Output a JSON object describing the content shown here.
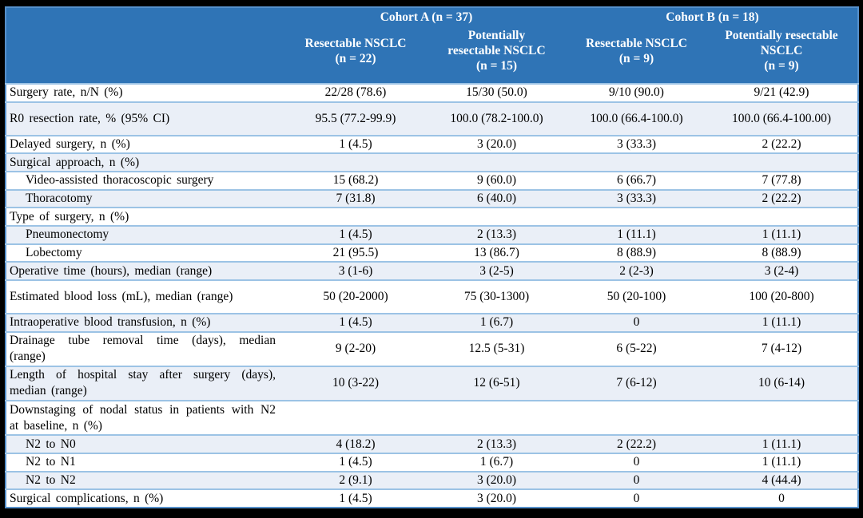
{
  "table": {
    "colors": {
      "header_bg": "#2F74B6",
      "band_bg": "#EAEFF7",
      "row_border": "#9CC3E5",
      "outer_border": "#5590CB",
      "frame_bg": "#000000",
      "header_text": "#FFFFFF"
    },
    "col_groups": [
      {
        "label": "Cohort A (n = 37)"
      },
      {
        "label": "Cohort B (n = 18)"
      }
    ],
    "columns": [
      {
        "label": "Resectable NSCLC\n(n = 22)"
      },
      {
        "label": "Potentially\nresectable NSCLC\n(n = 15)"
      },
      {
        "label": "Resectable NSCLC\n(n = 9)"
      },
      {
        "label": "Potentially resectable\nNSCLC\n(n = 9)"
      }
    ],
    "rows": [
      {
        "label": "Surgery rate, n/N (%)",
        "values": [
          "22/28 (78.6)",
          "15/30 (50.0)",
          "9/10 (90.0)",
          "9/21 (42.9)"
        ]
      },
      {
        "label": "R0 resection rate, % (95% CI)",
        "tall": true,
        "values": [
          "95.5 (77.2-99.9)",
          "100.0 (78.2-100.0)",
          "100.0 (66.4-100.0)",
          "100.0 (66.4-100.00)"
        ]
      },
      {
        "label": "Delayed surgery, n (%)",
        "values": [
          "1 (4.5)",
          "3 (20.0)",
          "3 (33.3)",
          "2 (22.2)"
        ]
      },
      {
        "label": "Surgical approach, n (%)",
        "values": [
          "",
          "",
          "",
          ""
        ]
      },
      {
        "label": "Video-assisted thoracoscopic surgery",
        "indent": true,
        "values": [
          "15 (68.2)",
          "9 (60.0)",
          "6 (66.7)",
          "7 (77.8)"
        ]
      },
      {
        "label": "Thoracotomy",
        "indent": true,
        "values": [
          "7 (31.8)",
          "6 (40.0)",
          "3 (33.3)",
          "2 (22.2)"
        ]
      },
      {
        "label": "Type of surgery, n (%)",
        "values": [
          "",
          "",
          "",
          ""
        ]
      },
      {
        "label": "Pneumonectomy",
        "indent": true,
        "values": [
          "1 (4.5)",
          "2 (13.3)",
          "1 (11.1)",
          "1 (11.1)"
        ]
      },
      {
        "label": "Lobectomy",
        "indent": true,
        "values": [
          "21 (95.5)",
          "13 (86.7)",
          "8 (88.9)",
          "8 (88.9)"
        ]
      },
      {
        "label": "Operative time (hours), median (range)",
        "values": [
          "3 (1-6)",
          "3 (2-5)",
          "2 (2-3)",
          "3 (2-4)"
        ]
      },
      {
        "label": "Estimated blood loss (mL), median (range)",
        "tall": true,
        "values": [
          "50 (20-2000)",
          "75 (30-1300)",
          "50 (20-100)",
          "100 (20-800)"
        ]
      },
      {
        "label": "Intraoperative blood transfusion, n (%)",
        "values": [
          "1 (4.5)",
          "1 (6.7)",
          "0",
          "1 (11.1)"
        ]
      },
      {
        "label": "Drainage tube removal time (days), median (range)",
        "values": [
          "9 (2-20)",
          "12.5 (5-31)",
          "6 (5-22)",
          "7 (4-12)"
        ]
      },
      {
        "label": "Length of hospital stay after surgery (days), median (range)",
        "values": [
          "10 (3-22)",
          "12 (6-51)",
          "7 (6-12)",
          "10 (6-14)"
        ]
      },
      {
        "label": "Downstaging of nodal status in patients with N2 at baseline, n (%)",
        "values": [
          "",
          "",
          "",
          ""
        ]
      },
      {
        "label": "N2 to N0",
        "indent": true,
        "values": [
          "4 (18.2)",
          "2 (13.3)",
          "2 (22.2)",
          "1 (11.1)"
        ]
      },
      {
        "label": "N2 to N1",
        "indent": true,
        "values": [
          "1 (4.5)",
          "1 (6.7)",
          "0",
          "1 (11.1)"
        ]
      },
      {
        "label": "N2 to N2",
        "indent": true,
        "values": [
          "2 (9.1)",
          "3 (20.0)",
          "0",
          "4 (44.4)"
        ]
      },
      {
        "label": "Surgical complications, n (%)",
        "values": [
          "1 (4.5)",
          "3 (20.0)",
          "0",
          "0"
        ]
      }
    ]
  }
}
